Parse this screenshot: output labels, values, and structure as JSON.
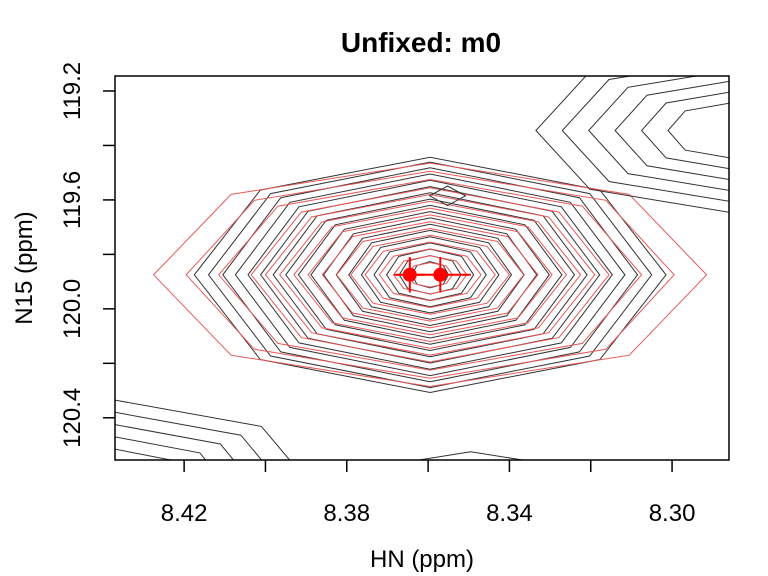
{
  "chart_data": {
    "type": "contour",
    "title": "Unfixed: m0",
    "xlabel": "HN (ppm)",
    "ylabel": "N15 (ppm)",
    "xlim": [
      8.437,
      8.286
    ],
    "ylim": [
      119.145,
      120.555
    ],
    "y_reversed": true,
    "x_reversed": true,
    "x_ticks": [
      8.42,
      8.4,
      8.38,
      8.36,
      8.34,
      8.32,
      8.3
    ],
    "x_tick_labels": [
      "8.42",
      "",
      "8.38",
      "",
      "8.34",
      "",
      "8.30"
    ],
    "y_ticks": [
      119.2,
      119.4,
      119.6,
      119.8,
      120.0,
      120.2,
      120.4
    ],
    "y_tick_labels": [
      "119.2",
      "",
      "119.6",
      "",
      "120.0",
      "",
      "120.4"
    ],
    "colors": {
      "observed": "#333333",
      "fit": "#ff0000",
      "fit_contour": "#e8585a"
    },
    "peaks": [
      {
        "series": "observed",
        "x": 8.3595,
        "y": 119.875,
        "rx": [
          0.0045,
          0.0076,
          0.0107,
          0.0138,
          0.0169,
          0.02,
          0.0231,
          0.0262,
          0.0293,
          0.0324,
          0.0355,
          0.0386,
          0.0417,
          0.0448,
          0.0479,
          0.051,
          0.0545,
          0.058
        ],
        "ry": [
          0.048,
          0.071,
          0.094,
          0.117,
          0.14,
          0.163,
          0.186,
          0.209,
          0.232,
          0.255,
          0.278,
          0.301,
          0.324,
          0.347,
          0.37,
          0.393,
          0.414,
          0.432
        ],
        "shape": "octagon"
      },
      {
        "series": "fit",
        "x": 8.3595,
        "y": 119.875,
        "rx": [
          0.0055,
          0.009,
          0.0125,
          0.016,
          0.0195,
          0.023,
          0.0265,
          0.03,
          0.0335,
          0.037,
          0.0405,
          0.044,
          0.052,
          0.06,
          0.068
        ],
        "ry": [
          0.045,
          0.07,
          0.095,
          0.12,
          0.145,
          0.17,
          0.195,
          0.22,
          0.245,
          0.27,
          0.295,
          0.32,
          0.35,
          0.38,
          0.41
        ],
        "shape": "octagon"
      },
      {
        "series": "observed",
        "x": 8.3552,
        "y": 119.585,
        "rx": [
          0.0044
        ],
        "ry": [
          0.036
        ],
        "shape": "diamond"
      },
      {
        "series": "observed",
        "x": 8.286,
        "y": 119.345,
        "rx": [
          0.015,
          0.0215,
          0.028,
          0.0345,
          0.041,
          0.0475
        ],
        "ry": [
          0.1,
          0.14,
          0.18,
          0.22,
          0.26,
          0.3
        ],
        "shape": "octagon"
      },
      {
        "series": "observed",
        "x": 8.437,
        "y": 120.68,
        "rx": [
          0.015,
          0.022,
          0.029,
          0.036,
          0.043,
          0.05
        ],
        "ry": [
          0.12,
          0.165,
          0.21,
          0.255,
          0.3,
          0.345
        ],
        "shape": "octagon"
      },
      {
        "series": "observed",
        "x": 8.3495,
        "y": 120.64,
        "rx": [
          0.011,
          0.019
        ],
        "ry": [
          0.075,
          0.115
        ],
        "shape": "octagon"
      }
    ],
    "fit_points": [
      {
        "x": 8.3645,
        "y": 119.875,
        "x_err": 0.0038,
        "y_err": 0.065
      },
      {
        "x": 8.357,
        "y": 119.875,
        "x_err": 0.0075,
        "y_err": 0.065
      }
    ]
  }
}
